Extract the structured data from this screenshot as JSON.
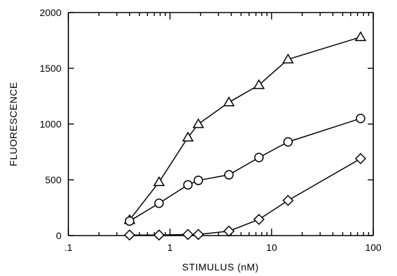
{
  "chart_data": {
    "type": "line",
    "xscale": "log",
    "xlim": [
      0.1,
      100
    ],
    "ylim": [
      0,
      2000
    ],
    "xlabel": "STIMULUS (nM)",
    "ylabel": "FLUORESCENCE",
    "x_tick_values": [
      0.1,
      1,
      10,
      100
    ],
    "x_tick_labels": [
      ".1",
      "1",
      "10",
      "100"
    ],
    "y_tick_values": [
      0,
      500,
      1000,
      1500,
      2000
    ],
    "y_tick_labels": [
      "0",
      "500",
      "1000",
      "1500",
      "2000"
    ],
    "grid": false,
    "series": [
      {
        "marker": "triangle",
        "x": [
          0.4,
          0.78,
          1.5,
          1.9,
          3.8,
          7.5,
          14.5,
          75
        ],
        "y": [
          140,
          480,
          880,
          1000,
          1195,
          1350,
          1580,
          1780
        ]
      },
      {
        "marker": "circle",
        "x": [
          0.4,
          0.78,
          1.5,
          1.9,
          3.8,
          7.5,
          14.5,
          75
        ],
        "y": [
          130,
          290,
          455,
          495,
          545,
          700,
          840,
          1050
        ]
      },
      {
        "marker": "diamond",
        "x": [
          0.4,
          0.78,
          1.5,
          1.9,
          3.8,
          7.5,
          14.5,
          75
        ],
        "y": [
          5,
          5,
          10,
          10,
          40,
          145,
          315,
          690
        ]
      }
    ]
  }
}
